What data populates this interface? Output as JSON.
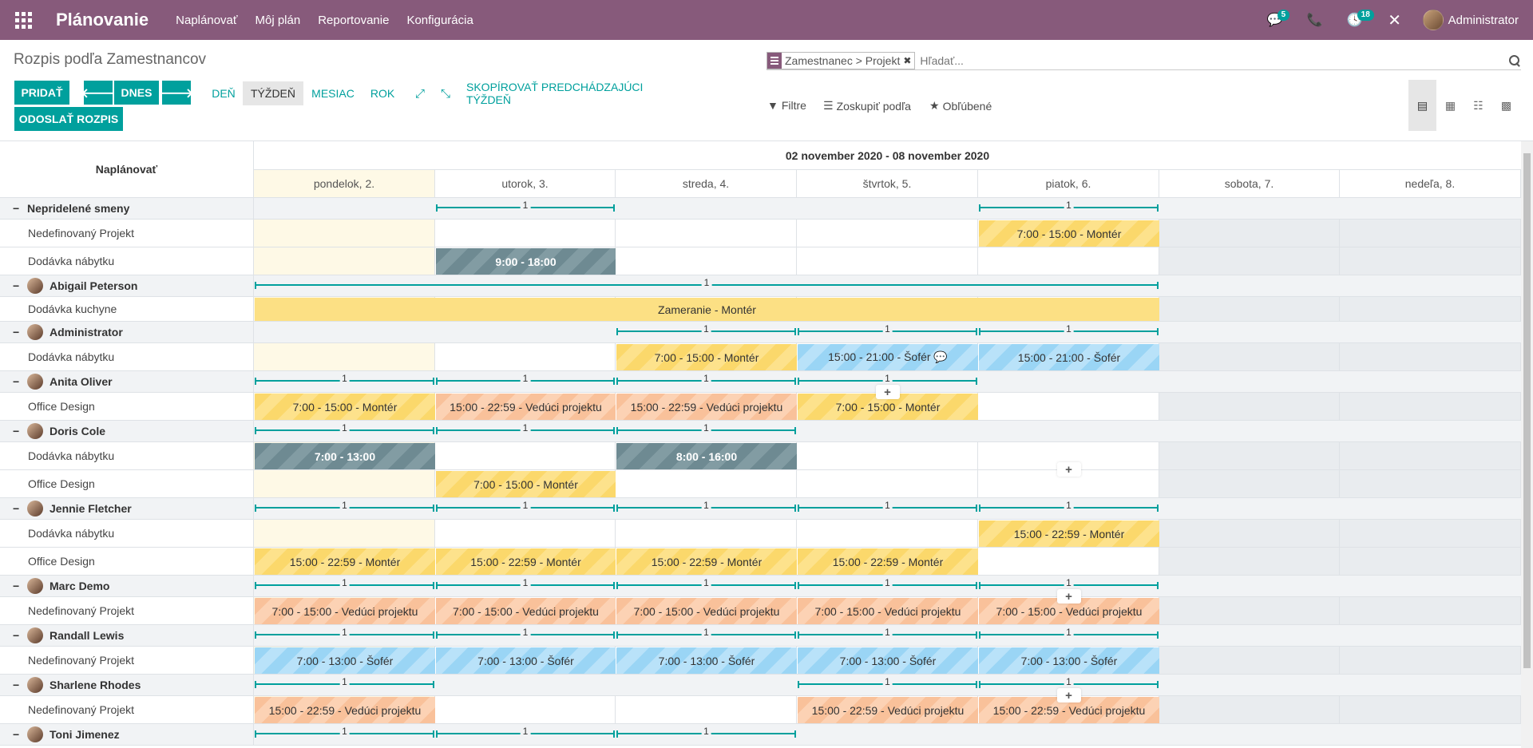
{
  "navbar": {
    "brand": "Plánovanie",
    "menu": [
      "Naplánovať",
      "Môj plán",
      "Reportovanie",
      "Konfigurácia"
    ],
    "messages_count": "5",
    "activities_count": "18",
    "user": "Administrator"
  },
  "control": {
    "title": "Rozpis podľa Zamestnancov",
    "facet": "Zamestnanec > Projekt",
    "search_placeholder": "Hľadať...",
    "add": "PRIDAŤ",
    "today": "DNES",
    "send": "ODOSLAŤ ROZPIS",
    "scales": [
      "DEŇ",
      "TÝŽDEŇ",
      "MESIAC",
      "ROK"
    ],
    "copy": "SKOPÍROVAŤ PREDCHÁDZAJÚCI TÝŽDEŇ",
    "filters": "Filtre",
    "group_by": "Zoskupiť podľa",
    "favorites": "Obľúbené"
  },
  "gantt": {
    "left_header": "Naplánovať",
    "range": "02 november 2020 - 08 november 2020",
    "days": [
      "pondelok, 2.",
      "utorok, 3.",
      "streda, 4.",
      "štvrtok, 5.",
      "piatok, 6.",
      "sobota, 7.",
      "nedeľa, 8."
    ],
    "rows": [
      {
        "type": "group",
        "label": "Nepridelené smeny",
        "avatar": false,
        "counts": [
          {
            "from": 1,
            "to": 1,
            "v": "1"
          },
          {
            "from": 4,
            "to": 4,
            "v": "1"
          }
        ]
      },
      {
        "type": "sub",
        "label": "Nedefinovaný Projekt",
        "pills": [
          {
            "from": 4,
            "to": 4,
            "text": "7:00 - 15:00 - Montér",
            "color": "yellow"
          }
        ]
      },
      {
        "type": "sub",
        "label": "Dodávka nábytku",
        "pills": [
          {
            "from": 1,
            "to": 1,
            "text": "9:00 - 18:00",
            "color": "gray"
          }
        ]
      },
      {
        "type": "group",
        "label": "Abigail Peterson",
        "avatar": true,
        "counts": [
          {
            "from": 0,
            "to": 4,
            "v": "1"
          }
        ]
      },
      {
        "type": "sub",
        "label": "Dodávka kuchyne",
        "pills": [
          {
            "from": 0,
            "to": 4,
            "text": "Zameranie - Montér",
            "color": "yellow-solid"
          }
        ]
      },
      {
        "type": "group",
        "label": "Administrator",
        "avatar": true,
        "counts": [
          {
            "from": 2,
            "to": 2,
            "v": "1"
          },
          {
            "from": 3,
            "to": 3,
            "v": "1"
          },
          {
            "from": 4,
            "to": 4,
            "v": "1"
          }
        ]
      },
      {
        "type": "sub",
        "label": "Dodávka nábytku",
        "pills": [
          {
            "from": 2,
            "to": 2,
            "text": "7:00 - 15:00 - Montér",
            "color": "yellow"
          },
          {
            "from": 3,
            "to": 3,
            "text": "15:00 - 21:00 - Šofér 💬",
            "color": "blue"
          },
          {
            "from": 4,
            "to": 4,
            "text": "15:00 - 21:00 - Šofér",
            "color": "blue"
          }
        ]
      },
      {
        "type": "group",
        "label": "Anita Oliver",
        "avatar": true,
        "counts": [
          {
            "from": 0,
            "to": 0,
            "v": "1"
          },
          {
            "from": 1,
            "to": 1,
            "v": "1"
          },
          {
            "from": 2,
            "to": 2,
            "v": "1"
          },
          {
            "from": 3,
            "to": 3,
            "v": "1"
          }
        ]
      },
      {
        "type": "sub",
        "label": "Office Design",
        "pills": [
          {
            "from": 0,
            "to": 0,
            "text": "7:00 - 15:00 - Montér",
            "color": "yellow"
          },
          {
            "from": 1,
            "to": 1,
            "text": "15:00 - 22:59 - Vedúci projektu",
            "color": "orange"
          },
          {
            "from": 2,
            "to": 2,
            "text": "15:00 - 22:59 - Vedúci projektu",
            "color": "orange"
          },
          {
            "from": 3,
            "to": 3,
            "text": "7:00 - 15:00 - Montér",
            "color": "yellow"
          }
        ],
        "plus": [
          3,
          -10
        ]
      },
      {
        "type": "group",
        "label": "Doris Cole",
        "avatar": true,
        "counts": [
          {
            "from": 0,
            "to": 0,
            "v": "1"
          },
          {
            "from": 1,
            "to": 1,
            "v": "1"
          },
          {
            "from": 2,
            "to": 2,
            "v": "1"
          }
        ]
      },
      {
        "type": "sub",
        "label": "Dodávka nábytku",
        "pills": [
          {
            "from": 0,
            "to": 0,
            "text": "7:00 - 13:00",
            "color": "gray"
          },
          {
            "from": 2,
            "to": 2,
            "text": "8:00 - 16:00",
            "color": "gray"
          }
        ]
      },
      {
        "type": "sub",
        "label": "Office Design",
        "pills": [
          {
            "from": 1,
            "to": 1,
            "text": "7:00 - 15:00 - Montér",
            "color": "yellow"
          }
        ],
        "plus": [
          4,
          -10
        ]
      },
      {
        "type": "group",
        "label": "Jennie Fletcher",
        "avatar": true,
        "counts": [
          {
            "from": 0,
            "to": 0,
            "v": "1"
          },
          {
            "from": 1,
            "to": 1,
            "v": "1"
          },
          {
            "from": 2,
            "to": 2,
            "v": "1"
          },
          {
            "from": 3,
            "to": 3,
            "v": "1"
          },
          {
            "from": 4,
            "to": 4,
            "v": "1"
          }
        ]
      },
      {
        "type": "sub",
        "label": "Dodávka nábytku",
        "pills": [
          {
            "from": 4,
            "to": 4,
            "text": "15:00 - 22:59 - Montér",
            "color": "yellow"
          }
        ]
      },
      {
        "type": "sub",
        "label": "Office Design",
        "pills": [
          {
            "from": 0,
            "to": 0,
            "text": "15:00 - 22:59 - Montér",
            "color": "yellow"
          },
          {
            "from": 1,
            "to": 1,
            "text": "15:00 - 22:59 - Montér",
            "color": "yellow"
          },
          {
            "from": 2,
            "to": 2,
            "text": "15:00 - 22:59 - Montér",
            "color": "yellow"
          },
          {
            "from": 3,
            "to": 3,
            "text": "15:00 - 22:59 - Montér",
            "color": "yellow"
          }
        ]
      },
      {
        "type": "group",
        "label": "Marc Demo",
        "avatar": true,
        "counts": [
          {
            "from": 0,
            "to": 0,
            "v": "1"
          },
          {
            "from": 1,
            "to": 1,
            "v": "1"
          },
          {
            "from": 2,
            "to": 2,
            "v": "1"
          },
          {
            "from": 3,
            "to": 3,
            "v": "1"
          },
          {
            "from": 4,
            "to": 4,
            "v": "1"
          }
        ]
      },
      {
        "type": "sub",
        "label": "Nedefinovaný Projekt",
        "pills": [
          {
            "from": 0,
            "to": 0,
            "text": "7:00 - 15:00 - Vedúci projektu",
            "color": "orange"
          },
          {
            "from": 1,
            "to": 1,
            "text": "7:00 - 15:00 - Vedúci projektu",
            "color": "orange"
          },
          {
            "from": 2,
            "to": 2,
            "text": "7:00 - 15:00 - Vedúci projektu",
            "color": "orange"
          },
          {
            "from": 3,
            "to": 3,
            "text": "7:00 - 15:00 - Vedúci projektu",
            "color": "orange"
          },
          {
            "from": 4,
            "to": 4,
            "text": "7:00 - 15:00 - Vedúci projektu",
            "color": "orange"
          }
        ],
        "plus": [
          4,
          -10
        ]
      },
      {
        "type": "group",
        "label": "Randall Lewis",
        "avatar": true,
        "counts": [
          {
            "from": 0,
            "to": 0,
            "v": "1"
          },
          {
            "from": 1,
            "to": 1,
            "v": "1"
          },
          {
            "from": 2,
            "to": 2,
            "v": "1"
          },
          {
            "from": 3,
            "to": 3,
            "v": "1"
          },
          {
            "from": 4,
            "to": 4,
            "v": "1"
          }
        ]
      },
      {
        "type": "sub",
        "label": "Nedefinovaný Projekt",
        "pills": [
          {
            "from": 0,
            "to": 0,
            "text": "7:00 - 13:00 - Šofér",
            "color": "blue"
          },
          {
            "from": 1,
            "to": 1,
            "text": "7:00 - 13:00 - Šofér",
            "color": "blue"
          },
          {
            "from": 2,
            "to": 2,
            "text": "7:00 - 13:00 - Šofér",
            "color": "blue"
          },
          {
            "from": 3,
            "to": 3,
            "text": "7:00 - 13:00 - Šofér",
            "color": "blue"
          },
          {
            "from": 4,
            "to": 4,
            "text": "7:00 - 13:00 - Šofér",
            "color": "blue"
          }
        ]
      },
      {
        "type": "group",
        "label": "Sharlene Rhodes",
        "avatar": true,
        "counts": [
          {
            "from": 0,
            "to": 0,
            "v": "1"
          },
          {
            "from": 3,
            "to": 3,
            "v": "1"
          },
          {
            "from": 4,
            "to": 4,
            "v": "1"
          }
        ]
      },
      {
        "type": "sub",
        "label": "Nedefinovaný Projekt",
        "pills": [
          {
            "from": 0,
            "to": 0,
            "text": "15:00 - 22:59 - Vedúci projektu",
            "color": "orange"
          },
          {
            "from": 3,
            "to": 3,
            "text": "15:00 - 22:59 - Vedúci projektu",
            "color": "orange"
          },
          {
            "from": 4,
            "to": 4,
            "text": "15:00 - 22:59 - Vedúci projektu",
            "color": "orange"
          }
        ],
        "plus": [
          4,
          -10
        ]
      },
      {
        "type": "group",
        "label": "Toni Jimenez",
        "avatar": true,
        "counts": [
          {
            "from": 0,
            "to": 0,
            "v": "1"
          },
          {
            "from": 1,
            "to": 1,
            "v": "1"
          },
          {
            "from": 2,
            "to": 2,
            "v": "1"
          }
        ]
      }
    ]
  }
}
